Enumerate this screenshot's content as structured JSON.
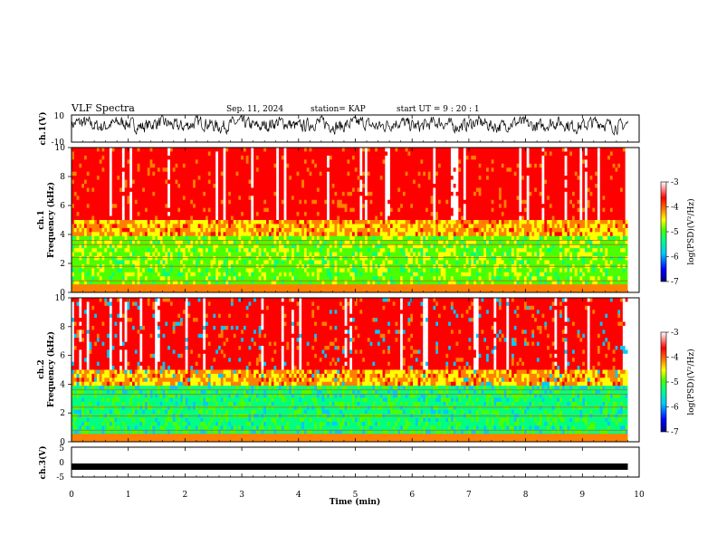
{
  "header": {
    "title": "VLF Spectra",
    "date": "Sep. 11, 2024",
    "station": "station= KAP",
    "start": "start UT =  9 : 20 : 1"
  },
  "colors": {
    "spectrum_scale": [
      "#00007f",
      "#0000ff",
      "#00c8ff",
      "#00ff80",
      "#4cff00",
      "#ffff00",
      "#ff8000",
      "#ff0000",
      "#ffffff"
    ],
    "background": "#ffffff",
    "trace": "#000000"
  },
  "chart_data": [
    {
      "type": "line",
      "id": "ch1-waveform",
      "ylabel": "ch.1(V)",
      "ylim": [
        -10,
        10
      ],
      "y_ticks": [
        "10",
        "-10"
      ],
      "x_range_min": [
        0,
        9.8
      ],
      "trace_color": "#000000",
      "description_range": "waveform oscillating mostly between -5 and 10 V"
    },
    {
      "type": "heatmap",
      "id": "ch1-spectrogram",
      "ylabel": "ch.1\nFrequency (kHz)",
      "ylabel_lines": [
        "ch.1",
        "Frequency (kHz)"
      ],
      "ylim": [
        0,
        10
      ],
      "y_ticks": [
        "0",
        "2",
        "4",
        "6",
        "8",
        "10"
      ],
      "x_range_min": [
        0,
        9.8
      ],
      "colorbar": {
        "label": "log(PSD)(V²/Hz)",
        "ticks": [
          "-3",
          "-4",
          "-5",
          "-6",
          "-7"
        ],
        "range": [
          -7,
          -3
        ]
      }
    },
    {
      "type": "heatmap",
      "id": "ch2-spectrogram",
      "ylabel_lines": [
        "ch.2",
        "Frequency (kHz)"
      ],
      "ylim": [
        0,
        10
      ],
      "y_ticks": [
        "0",
        "2",
        "4",
        "6",
        "8",
        "10"
      ],
      "x_range_min": [
        0,
        9.8
      ],
      "colorbar": {
        "label": "log(PSD)(V²/Hz)",
        "ticks": [
          "-3",
          "-4",
          "-5",
          "-6",
          "-7"
        ],
        "range": [
          -7,
          -3
        ]
      }
    },
    {
      "type": "line",
      "id": "ch3-waveform",
      "ylabel": "ch.3(V)",
      "ylim": [
        -5,
        5
      ],
      "y_ticks": [
        "5",
        "0",
        "-5"
      ],
      "x_range_min": [
        0,
        9.8
      ],
      "level": -1.5,
      "trace_color": "#000000"
    }
  ],
  "x_axis": {
    "label": "Time (min)",
    "ticks": [
      "0",
      "1",
      "2",
      "3",
      "4",
      "5",
      "6",
      "7",
      "8",
      "9",
      "10"
    ],
    "range": [
      0,
      10
    ]
  }
}
